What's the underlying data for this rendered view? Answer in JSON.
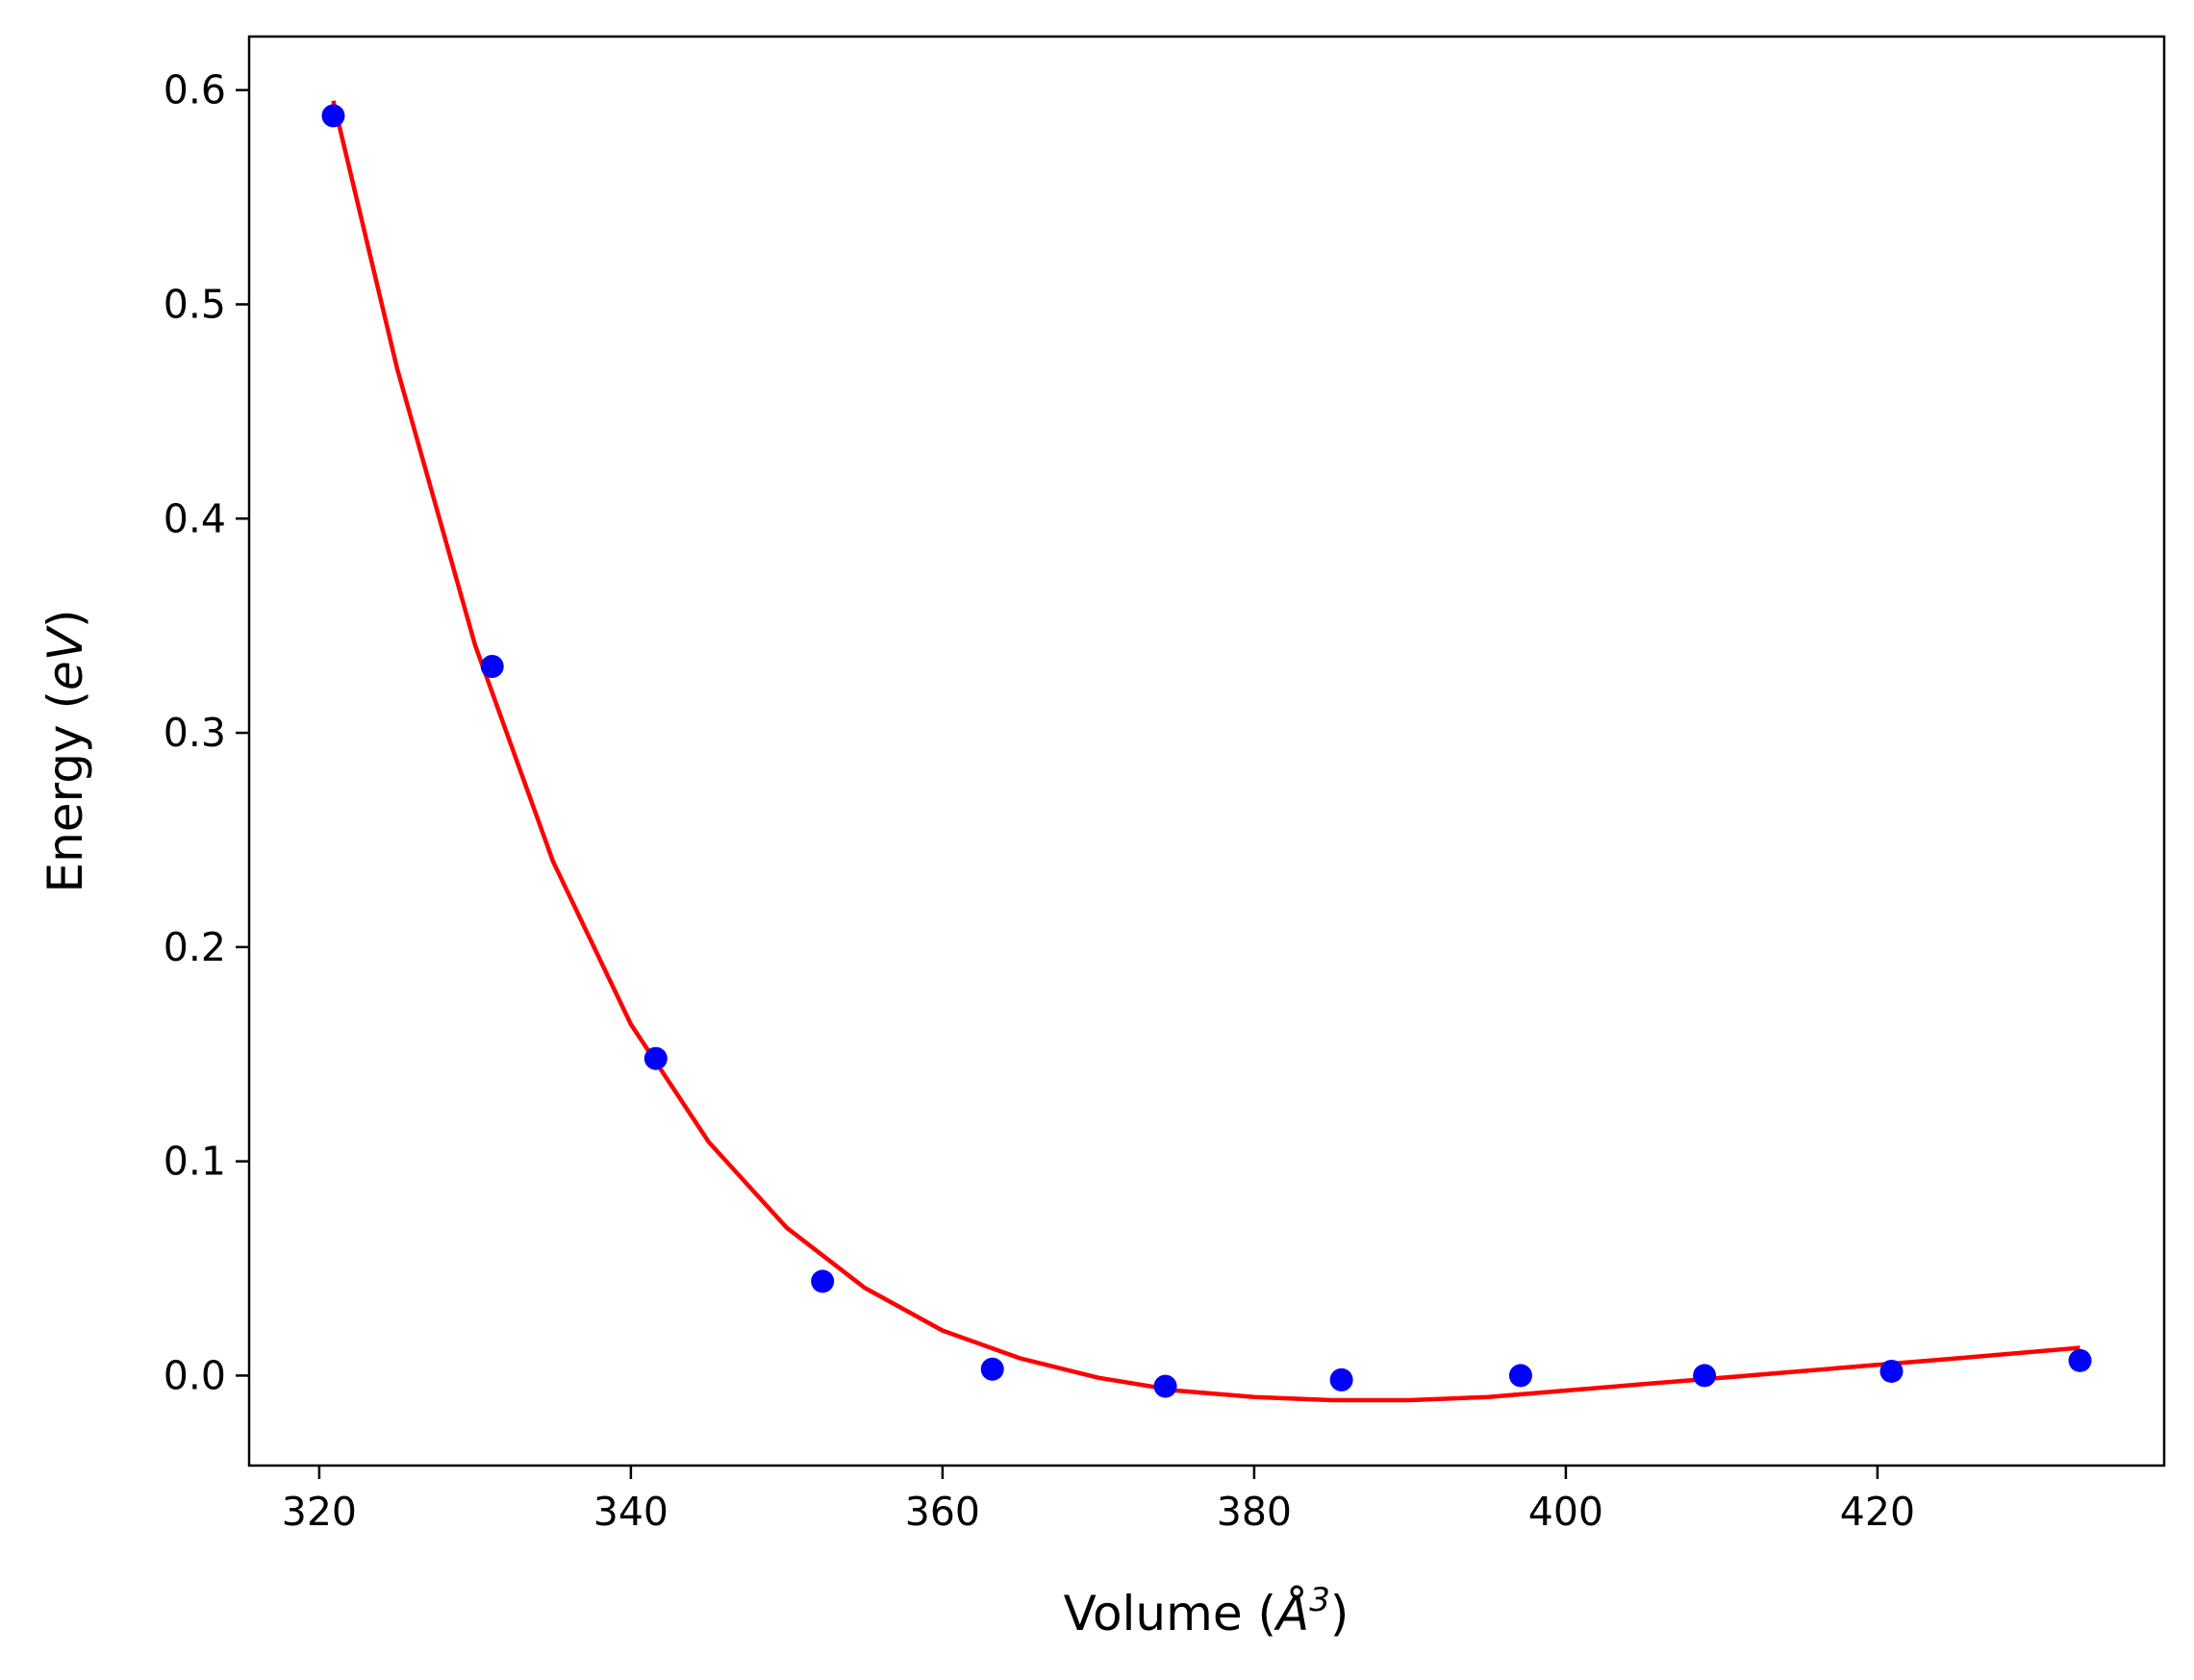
{
  "chart_data": {
    "type": "scatter",
    "xlabel_parts": {
      "prefix": "Volume (",
      "symbol": "Å",
      "exponent": "3",
      "suffix": ")"
    },
    "ylabel_parts": {
      "prefix": "Energy (",
      "unit": "eV",
      "suffix": ")"
    },
    "xlim": [
      315.5,
      438.4
    ],
    "ylim": [
      -0.042,
      0.625
    ],
    "x_ticks": [
      320,
      340,
      360,
      380,
      400,
      420
    ],
    "x_tick_labels": [
      "320",
      "340",
      "360",
      "380",
      "400",
      "420"
    ],
    "y_ticks": [
      0.0,
      0.1,
      0.2,
      0.3,
      0.4,
      0.5,
      0.6
    ],
    "y_tick_labels": [
      "0.0",
      "0.1",
      "0.2",
      "0.3",
      "0.4",
      "0.5",
      "0.6"
    ],
    "grid": false,
    "series": [
      {
        "kind": "points",
        "color": "#0000ff",
        "x": [
          320.9,
          331.1,
          341.6,
          352.3,
          363.2,
          374.3,
          385.6,
          397.1,
          408.9,
          420.9,
          433.0
        ],
        "y": [
          0.588,
          0.331,
          0.148,
          0.044,
          0.003,
          -0.005,
          -0.002,
          0.0,
          0.0,
          0.002,
          0.007
        ]
      },
      {
        "kind": "line",
        "color": "#ff0000",
        "x": [
          320.9,
          325,
          330,
          335,
          340,
          345,
          350,
          355,
          360,
          365,
          370,
          375,
          380,
          385,
          390,
          395,
          400,
          405,
          410,
          415,
          420,
          425,
          433.0
        ],
        "y": [
          0.595,
          0.47,
          0.341,
          0.24,
          0.164,
          0.109,
          0.069,
          0.041,
          0.021,
          0.008,
          -0.001,
          -0.007,
          -0.01,
          -0.0115,
          -0.0115,
          -0.01,
          -0.007,
          -0.004,
          -0.001,
          0.002,
          0.005,
          0.008,
          0.013
        ]
      }
    ]
  }
}
